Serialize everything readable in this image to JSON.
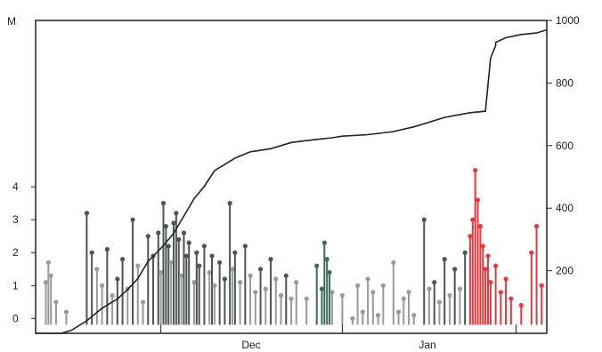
{
  "chart_data": {
    "type": "line",
    "title": "",
    "ylabel_left": "M",
    "ylabel_right": "",
    "xlabel": "",
    "x_months": [
      "Dec",
      "Jan"
    ],
    "left_axis": {
      "ticks": [
        0,
        1,
        2,
        3,
        4
      ],
      "range": [
        -0.45,
        9.05
      ]
    },
    "right_axis": {
      "ticks": [
        200,
        400,
        600,
        800,
        1000
      ],
      "range": [
        0,
        1000
      ]
    },
    "series": [
      {
        "kind": "cumulative",
        "color": "#222222",
        "x": [
          0.0,
          0.05,
          0.07,
          0.1,
          0.13,
          0.16,
          0.18,
          0.2,
          0.22,
          0.25,
          0.27,
          0.29,
          0.31,
          0.33,
          0.35,
          0.37,
          0.39,
          0.42,
          0.46,
          0.5,
          0.55,
          0.58,
          0.6,
          0.65,
          0.7,
          0.74,
          0.8,
          0.85,
          0.88,
          0.89,
          0.9,
          0.9,
          0.92,
          0.95,
          0.98,
          1.0
        ],
        "y": [
          0,
          0,
          10,
          40,
          80,
          110,
          140,
          175,
          230,
          280,
          320,
          375,
          430,
          470,
          520,
          540,
          560,
          580,
          590,
          610,
          620,
          625,
          630,
          635,
          645,
          660,
          690,
          705,
          710,
          880,
          920,
          930,
          945,
          955,
          960,
          970
        ]
      }
    ],
    "events": [
      {
        "x": 0.02,
        "m": 1.1,
        "c": "gray"
      },
      {
        "x": 0.025,
        "m": 1.7,
        "c": "gray"
      },
      {
        "x": 0.03,
        "m": 1.3,
        "c": "gray"
      },
      {
        "x": 0.04,
        "m": 0.5,
        "c": "gray"
      },
      {
        "x": 0.06,
        "m": 0.2,
        "c": "gray"
      },
      {
        "x": 0.1,
        "m": 3.2,
        "c": "dark"
      },
      {
        "x": 0.11,
        "m": 2.0,
        "c": "dark"
      },
      {
        "x": 0.12,
        "m": 1.5,
        "c": "gray"
      },
      {
        "x": 0.13,
        "m": 1.0,
        "c": "gray"
      },
      {
        "x": 0.14,
        "m": 2.1,
        "c": "dark"
      },
      {
        "x": 0.15,
        "m": 0.7,
        "c": "gray"
      },
      {
        "x": 0.16,
        "m": 1.2,
        "c": "dark"
      },
      {
        "x": 0.17,
        "m": 1.8,
        "c": "dark"
      },
      {
        "x": 0.18,
        "m": 0.9,
        "c": "gray"
      },
      {
        "x": 0.19,
        "m": 3.0,
        "c": "dark"
      },
      {
        "x": 0.2,
        "m": 1.6,
        "c": "gray"
      },
      {
        "x": 0.21,
        "m": 0.5,
        "c": "gray"
      },
      {
        "x": 0.22,
        "m": 2.5,
        "c": "dark"
      },
      {
        "x": 0.23,
        "m": 1.9,
        "c": "dark"
      },
      {
        "x": 0.24,
        "m": 2.6,
        "c": "dark"
      },
      {
        "x": 0.245,
        "m": 1.4,
        "c": "gray"
      },
      {
        "x": 0.25,
        "m": 3.5,
        "c": "dark"
      },
      {
        "x": 0.255,
        "m": 2.8,
        "c": "dark"
      },
      {
        "x": 0.26,
        "m": 2.2,
        "c": "dark"
      },
      {
        "x": 0.265,
        "m": 1.7,
        "c": "gray"
      },
      {
        "x": 0.27,
        "m": 2.9,
        "c": "dark"
      },
      {
        "x": 0.275,
        "m": 3.2,
        "c": "dark"
      },
      {
        "x": 0.28,
        "m": 2.4,
        "c": "dark"
      },
      {
        "x": 0.285,
        "m": 1.3,
        "c": "gray"
      },
      {
        "x": 0.29,
        "m": 2.6,
        "c": "dark"
      },
      {
        "x": 0.295,
        "m": 1.9,
        "c": "dark"
      },
      {
        "x": 0.3,
        "m": 2.3,
        "c": "dark"
      },
      {
        "x": 0.31,
        "m": 1.1,
        "c": "gray"
      },
      {
        "x": 0.315,
        "m": 2.0,
        "c": "dark"
      },
      {
        "x": 0.32,
        "m": 1.6,
        "c": "dark"
      },
      {
        "x": 0.33,
        "m": 2.2,
        "c": "dark"
      },
      {
        "x": 0.34,
        "m": 1.4,
        "c": "gray"
      },
      {
        "x": 0.345,
        "m": 1.9,
        "c": "dark"
      },
      {
        "x": 0.35,
        "m": 1.0,
        "c": "gray"
      },
      {
        "x": 0.36,
        "m": 1.7,
        "c": "dark"
      },
      {
        "x": 0.37,
        "m": 1.2,
        "c": "dark"
      },
      {
        "x": 0.38,
        "m": 3.5,
        "c": "dark"
      },
      {
        "x": 0.385,
        "m": 1.5,
        "c": "gray"
      },
      {
        "x": 0.39,
        "m": 2.0,
        "c": "dark"
      },
      {
        "x": 0.4,
        "m": 1.1,
        "c": "gray"
      },
      {
        "x": 0.41,
        "m": 2.2,
        "c": "dark"
      },
      {
        "x": 0.42,
        "m": 1.3,
        "c": "gray"
      },
      {
        "x": 0.43,
        "m": 0.8,
        "c": "gray"
      },
      {
        "x": 0.44,
        "m": 1.5,
        "c": "dark"
      },
      {
        "x": 0.45,
        "m": 0.9,
        "c": "gray"
      },
      {
        "x": 0.46,
        "m": 1.8,
        "c": "dark"
      },
      {
        "x": 0.47,
        "m": 1.2,
        "c": "gray"
      },
      {
        "x": 0.48,
        "m": 0.7,
        "c": "gray"
      },
      {
        "x": 0.49,
        "m": 1.3,
        "c": "dark"
      },
      {
        "x": 0.5,
        "m": 0.6,
        "c": "gray"
      },
      {
        "x": 0.51,
        "m": 1.1,
        "c": "gray"
      },
      {
        "x": 0.53,
        "m": 0.6,
        "c": "gray"
      },
      {
        "x": 0.55,
        "m": 1.6,
        "c": "teal"
      },
      {
        "x": 0.56,
        "m": 0.9,
        "c": "teal"
      },
      {
        "x": 0.565,
        "m": 2.3,
        "c": "teal"
      },
      {
        "x": 0.57,
        "m": 1.8,
        "c": "teal"
      },
      {
        "x": 0.575,
        "m": 1.4,
        "c": "teal"
      },
      {
        "x": 0.58,
        "m": 0.8,
        "c": "gray"
      },
      {
        "x": 0.6,
        "m": 0.7,
        "c": "gray"
      },
      {
        "x": 0.62,
        "m": 0.0,
        "c": "gray"
      },
      {
        "x": 0.63,
        "m": 1.0,
        "c": "gray"
      },
      {
        "x": 0.64,
        "m": 0.2,
        "c": "gray"
      },
      {
        "x": 0.65,
        "m": 1.2,
        "c": "gray"
      },
      {
        "x": 0.66,
        "m": 0.8,
        "c": "gray"
      },
      {
        "x": 0.67,
        "m": 0.1,
        "c": "gray"
      },
      {
        "x": 0.68,
        "m": 1.0,
        "c": "gray"
      },
      {
        "x": 0.7,
        "m": 1.7,
        "c": "gray"
      },
      {
        "x": 0.71,
        "m": 0.2,
        "c": "gray"
      },
      {
        "x": 0.72,
        "m": 0.6,
        "c": "gray"
      },
      {
        "x": 0.73,
        "m": 0.8,
        "c": "gray"
      },
      {
        "x": 0.74,
        "m": 0.1,
        "c": "gray"
      },
      {
        "x": 0.76,
        "m": 3.0,
        "c": "dark"
      },
      {
        "x": 0.77,
        "m": 0.9,
        "c": "gray"
      },
      {
        "x": 0.78,
        "m": 1.1,
        "c": "dark"
      },
      {
        "x": 0.79,
        "m": 0.5,
        "c": "gray"
      },
      {
        "x": 0.8,
        "m": 1.8,
        "c": "dark"
      },
      {
        "x": 0.81,
        "m": 0.7,
        "c": "gray"
      },
      {
        "x": 0.82,
        "m": 1.5,
        "c": "dark"
      },
      {
        "x": 0.83,
        "m": 0.9,
        "c": "gray"
      },
      {
        "x": 0.84,
        "m": 2.0,
        "c": "dark"
      },
      {
        "x": 0.85,
        "m": 2.5,
        "c": "red"
      },
      {
        "x": 0.855,
        "m": 3.0,
        "c": "red"
      },
      {
        "x": 0.86,
        "m": 4.5,
        "c": "red"
      },
      {
        "x": 0.865,
        "m": 3.6,
        "c": "red"
      },
      {
        "x": 0.87,
        "m": 2.8,
        "c": "red"
      },
      {
        "x": 0.875,
        "m": 2.2,
        "c": "red"
      },
      {
        "x": 0.88,
        "m": 1.5,
        "c": "red"
      },
      {
        "x": 0.885,
        "m": 1.9,
        "c": "red"
      },
      {
        "x": 0.89,
        "m": 1.1,
        "c": "red"
      },
      {
        "x": 0.9,
        "m": 1.6,
        "c": "red"
      },
      {
        "x": 0.91,
        "m": 0.8,
        "c": "red"
      },
      {
        "x": 0.92,
        "m": 1.2,
        "c": "red"
      },
      {
        "x": 0.93,
        "m": 0.6,
        "c": "red"
      },
      {
        "x": 0.95,
        "m": 0.4,
        "c": "red"
      },
      {
        "x": 0.97,
        "m": 2.0,
        "c": "red"
      },
      {
        "x": 0.98,
        "m": 2.8,
        "c": "red"
      },
      {
        "x": 0.99,
        "m": 1.0,
        "c": "red"
      }
    ],
    "colors": {
      "gray": "#9a9a9a",
      "dark": "#4c5550",
      "teal": "#3f6b5f",
      "red": "#e2393f",
      "axis": "#222222",
      "curve": "#222222"
    },
    "grid": false
  }
}
